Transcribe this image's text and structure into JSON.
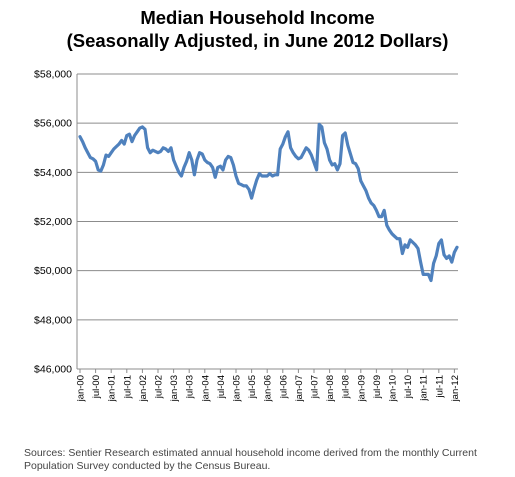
{
  "chart_data": {
    "type": "line",
    "title": "Median Household Income",
    "subtitle": "(Seasonally Adjusted, in June 2012 Dollars)",
    "xlabel": "",
    "ylabel": "",
    "ylim": [
      46000,
      58000
    ],
    "grid": true,
    "legend": "none",
    "color": "#4F81BD",
    "y_ticks": [
      "$46,000",
      "$48,000",
      "$50,000",
      "$52,000",
      "$54,000",
      "$56,000",
      "$58,000"
    ],
    "x_ticks": [
      "jan-00",
      "jul-00",
      "jan-01",
      "jul-01",
      "jan-02",
      "jul-02",
      "jan-03",
      "jul-03",
      "jan-04",
      "jul-04",
      "jan-05",
      "jul-05",
      "jan-06",
      "jul-06",
      "jan-07",
      "jul-07",
      "jan-08",
      "jul-08",
      "jan-09",
      "jul-09",
      "jan-10",
      "jul-10",
      "jan-11",
      "jul-11",
      "jan-12"
    ],
    "series": [
      {
        "start": "jan-00",
        "frequency": "monthly",
        "values": [
          55450,
          55250,
          55000,
          54800,
          54600,
          54550,
          54450,
          54100,
          54050,
          54300,
          54700,
          54650,
          54800,
          54950,
          55050,
          55150,
          55300,
          55150,
          55500,
          55550,
          55250,
          55500,
          55650,
          55800,
          55850,
          55750,
          55000,
          54800,
          54900,
          54850,
          54800,
          54850,
          55000,
          54950,
          54850,
          55000,
          54500,
          54250,
          54000,
          53850,
          54200,
          54450,
          54800,
          54500,
          53900,
          54500,
          54800,
          54750,
          54500,
          54400,
          54350,
          54200,
          53800,
          54200,
          54250,
          54100,
          54500,
          54650,
          54600,
          54300,
          53850,
          53550,
          53500,
          53450,
          53450,
          53300,
          52950,
          53350,
          53700,
          53950,
          53850,
          53850,
          53850,
          53950,
          53850,
          53900,
          53900,
          54950,
          55150,
          55450,
          55650,
          55000,
          54800,
          54650,
          54550,
          54600,
          54800,
          55000,
          54900,
          54700,
          54400,
          54100,
          55950,
          55850,
          55200,
          54950,
          54500,
          54300,
          54350,
          54100,
          54350,
          55500,
          55600,
          55100,
          54750,
          54400,
          54350,
          54150,
          53650,
          53450,
          53250,
          52950,
          52750,
          52650,
          52450,
          52200,
          52200,
          52450,
          51850,
          51650,
          51500,
          51400,
          51300,
          51300,
          50700,
          51050,
          50950,
          51250,
          51150,
          51050,
          50900,
          50350,
          49850,
          49850,
          49850,
          49600,
          50300,
          50600,
          51100,
          51250,
          50650,
          50500,
          50600,
          50350,
          50750,
          50950
        ]
      }
    ]
  },
  "source_note": "Sources: Sentier Research estimated annual household income derived from the monthly Current Population Survey conducted by the Census Bureau."
}
